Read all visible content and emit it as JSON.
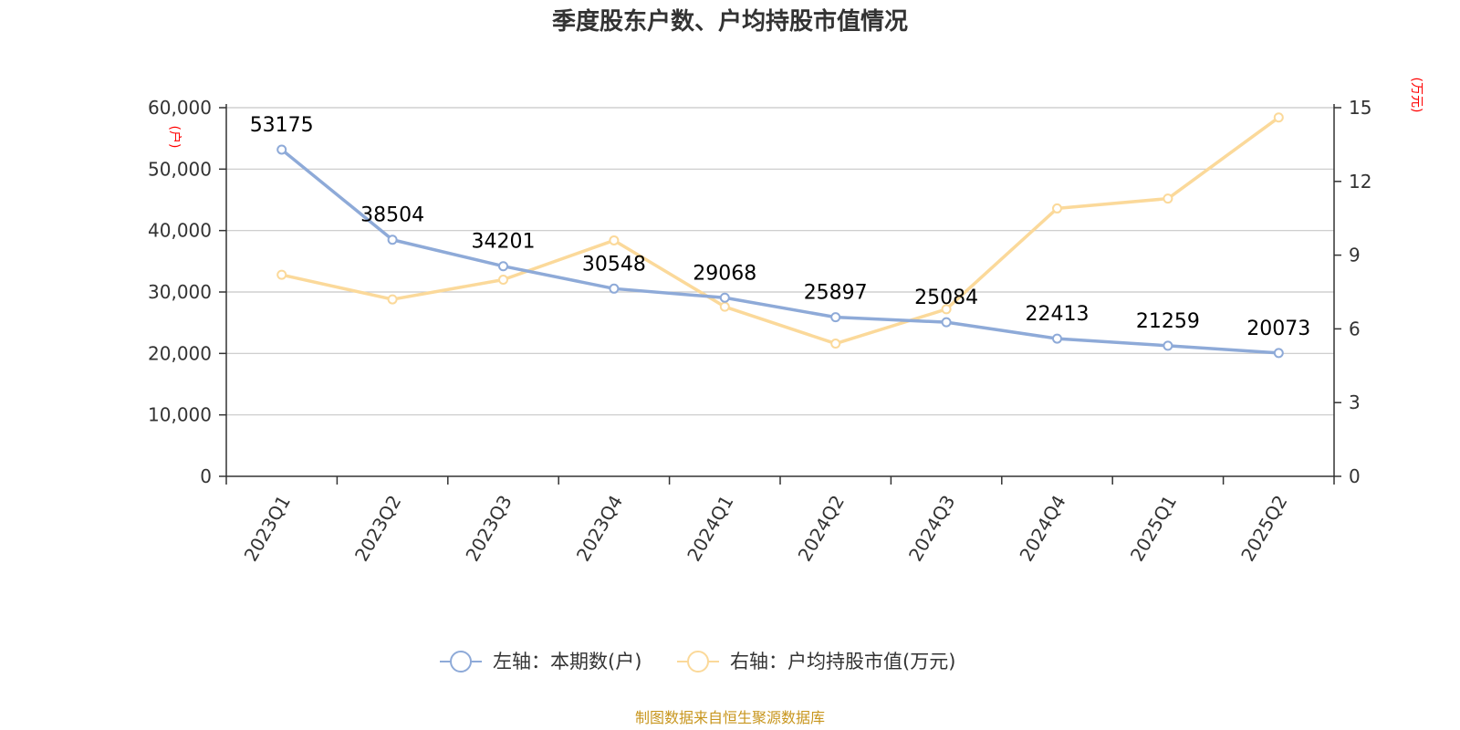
{
  "title": "季度股东户数、户均持股市值情况",
  "source": "制图数据来自恒生聚源数据库",
  "chart_data": {
    "type": "line",
    "title": "季度股东户数、户均持股市值情况",
    "categories": [
      "2023Q1",
      "2023Q2",
      "2023Q3",
      "2023Q4",
      "2024Q1",
      "2024Q2",
      "2024Q3",
      "2024Q4",
      "2025Q1",
      "2025Q2"
    ],
    "y_left": {
      "unit": "(户)",
      "range": [
        0,
        60000
      ],
      "ticks": [
        0,
        10000,
        20000,
        30000,
        40000,
        50000,
        60000
      ],
      "tick_labels": [
        "0",
        "10,000",
        "20,000",
        "30,000",
        "40,000",
        "50,000",
        "60,000"
      ]
    },
    "y_right": {
      "unit": "(万元)",
      "range": [
        0,
        15
      ],
      "ticks": [
        0,
        3,
        6,
        9,
        12,
        15
      ],
      "tick_labels": [
        "0",
        "3",
        "6",
        "9",
        "12",
        "15"
      ]
    },
    "series": [
      {
        "name": "左轴：本期数(户)",
        "axis": "left",
        "color": "#8eaad8",
        "values": [
          53175,
          38504,
          34201,
          30548,
          29068,
          25897,
          25084,
          22413,
          21259,
          20073
        ],
        "labels": [
          "53175",
          "38504",
          "34201",
          "30548",
          "29068",
          "25897",
          "25084",
          "22413",
          "21259",
          "20073"
        ]
      },
      {
        "name": "右轴：户均持股市值(万元)",
        "axis": "right",
        "color": "#fbd99a",
        "values": [
          8.2,
          7.2,
          8.0,
          9.6,
          6.9,
          5.4,
          6.8,
          10.9,
          11.3,
          14.6
        ]
      }
    ],
    "grid": true,
    "legend": "bottom-center"
  }
}
